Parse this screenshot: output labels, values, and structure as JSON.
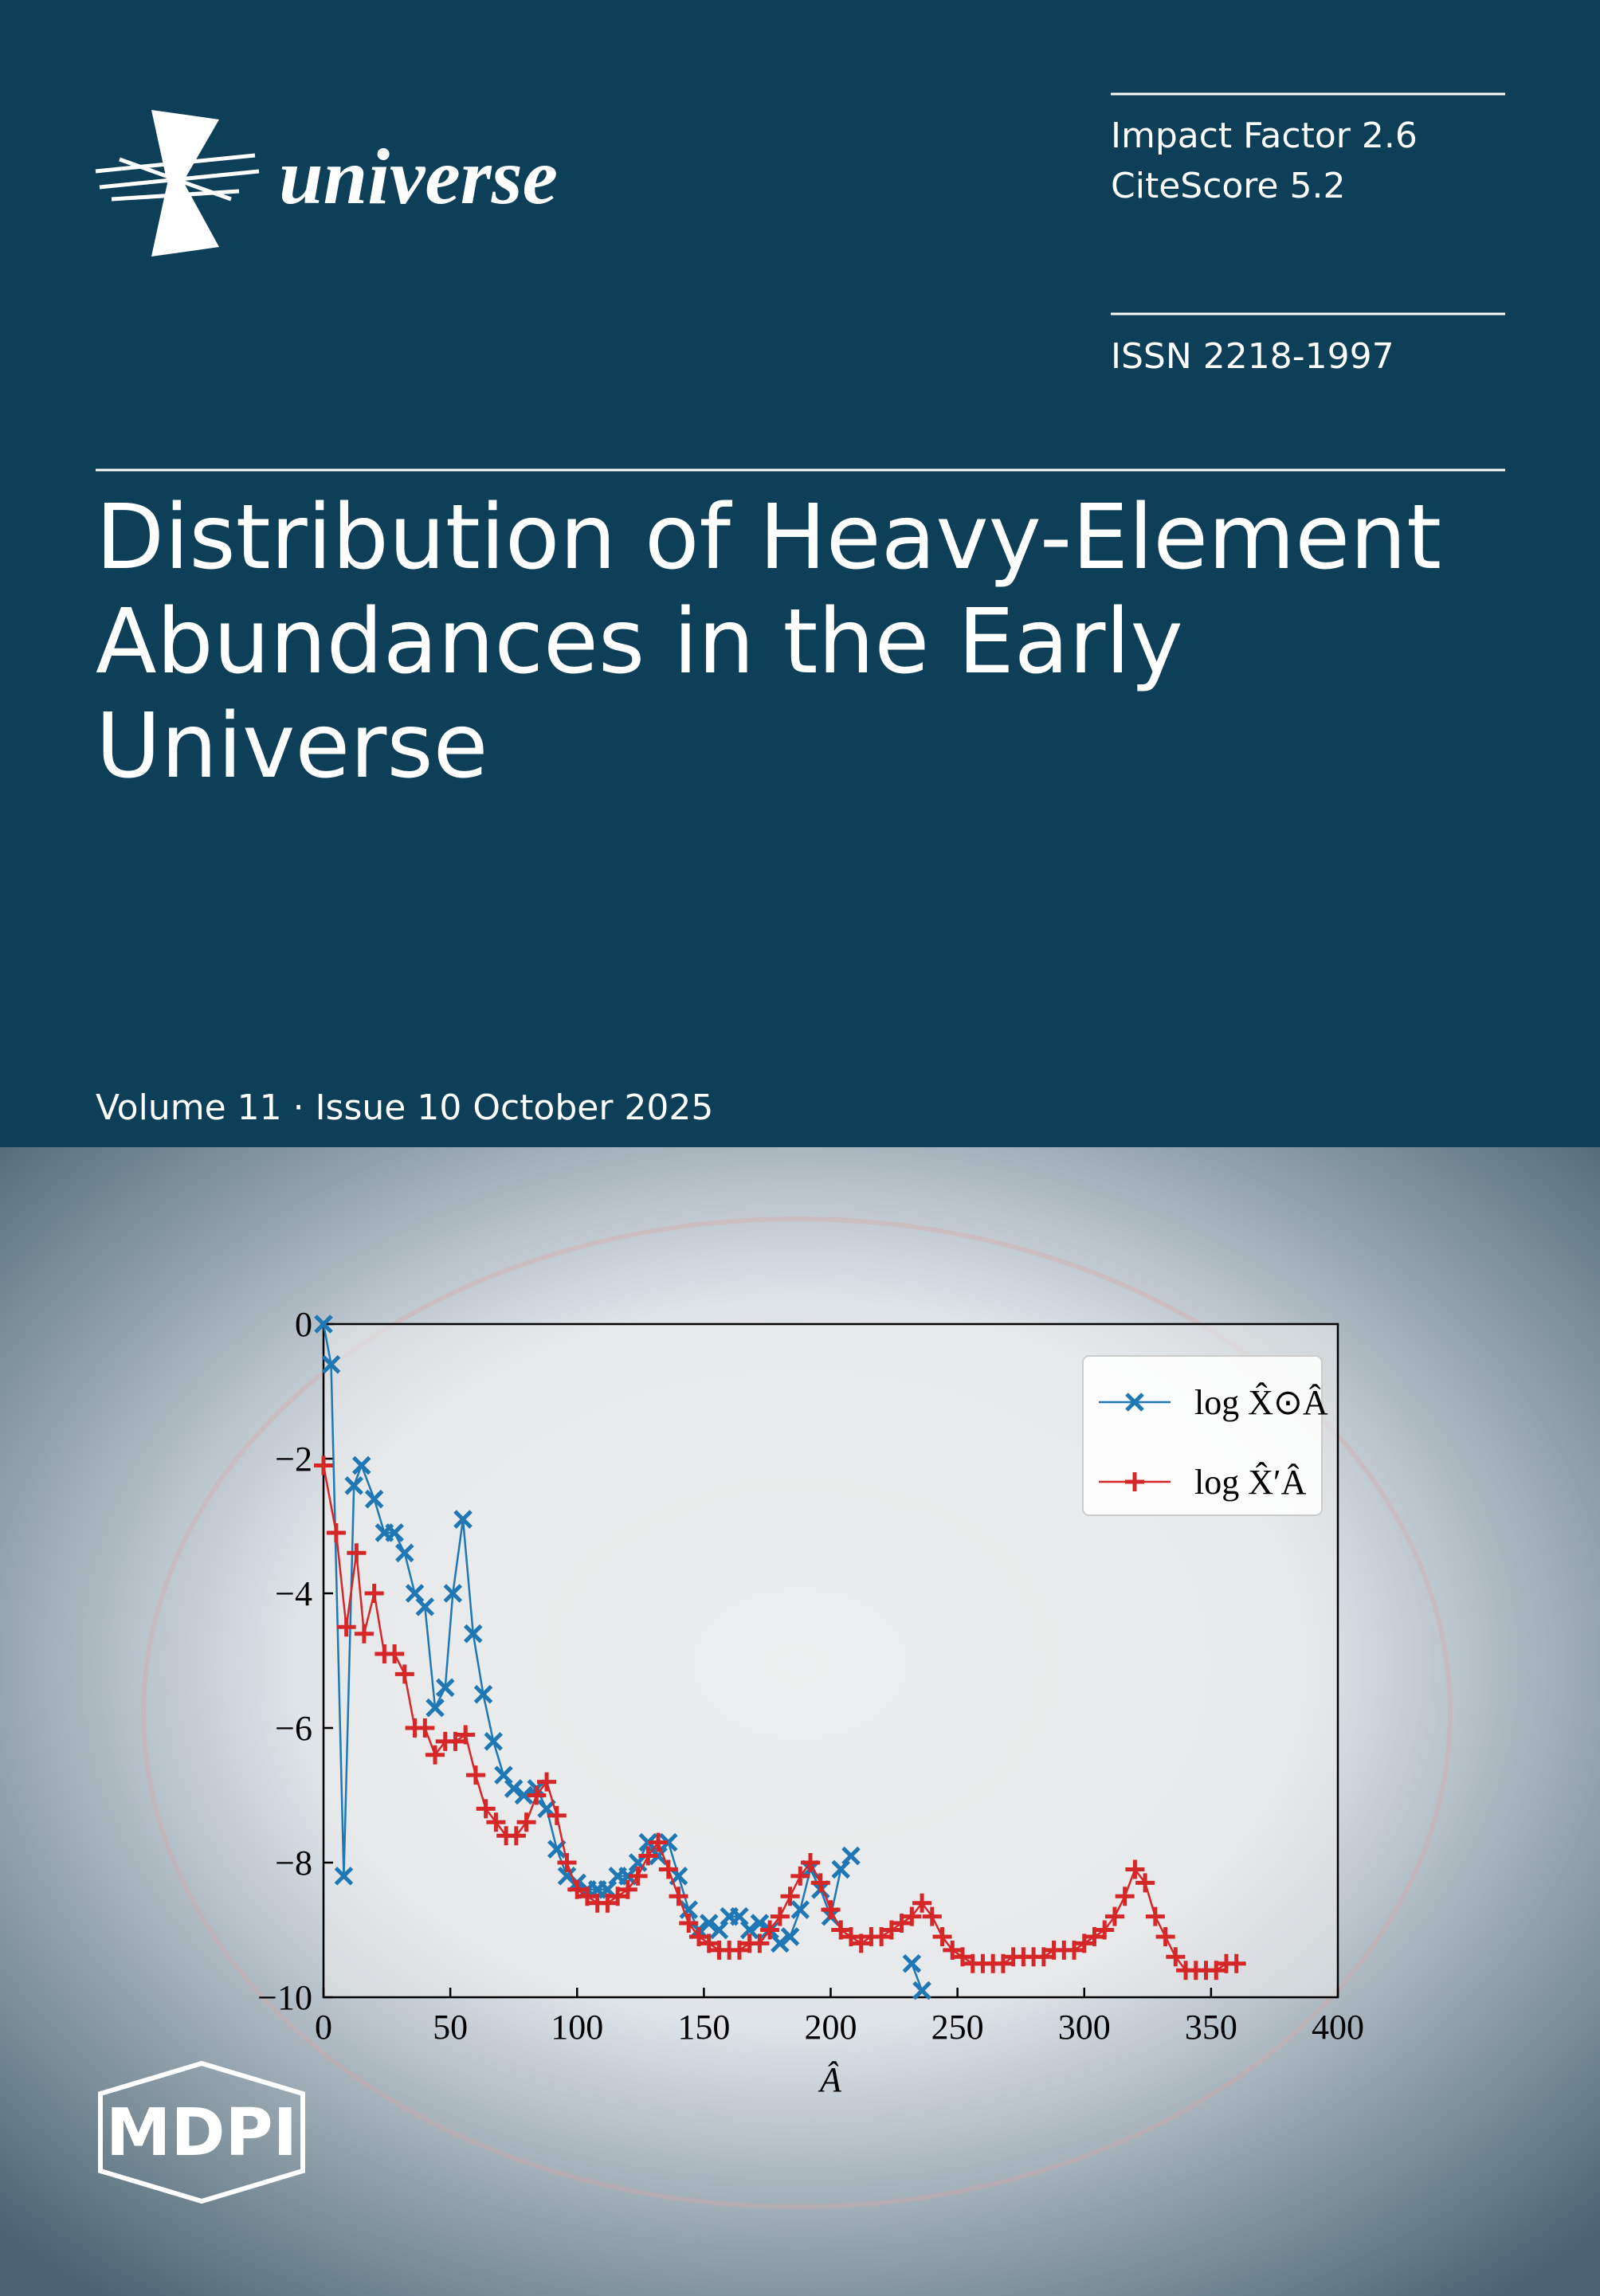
{
  "cover": {
    "journal": "universe",
    "impact_factor": "Impact Factor 2.6",
    "citescore": "CiteScore 5.2",
    "issn": "ISSN 2218-1997",
    "title_lines": [
      "Distribution of Heavy-Element",
      "Abundances in the Early",
      "Universe"
    ],
    "issue": "Volume 11 · Issue 10 October 2025",
    "publisher": "MDPI"
  },
  "chart_data": {
    "type": "line",
    "xlabel": "Â",
    "xlim": [
      0,
      400
    ],
    "ylim": [
      -10,
      0
    ],
    "xticks": [
      0,
      50,
      100,
      150,
      200,
      250,
      300,
      350,
      400
    ],
    "yticks": [
      0,
      {
        "value": -2,
        "label": "−2"
      },
      {
        "value": -4,
        "label": "−4"
      },
      {
        "value": -6,
        "label": "−6"
      },
      {
        "value": -8,
        "label": "−8"
      },
      {
        "value": -10,
        "label": "−10"
      }
    ],
    "legend": "upper right",
    "series": [
      {
        "name": "log X̂⊙Â",
        "color": "#1f77b4",
        "marker": "x",
        "x": [
          0,
          3,
          8,
          12,
          15,
          20,
          24,
          28,
          32,
          36,
          40,
          44,
          48,
          51,
          55,
          59,
          63,
          67,
          71,
          75,
          79,
          84,
          88,
          92,
          96,
          100,
          104,
          108,
          112,
          116,
          120,
          124,
          128,
          132,
          136,
          140,
          144,
          148,
          152,
          156,
          160,
          164,
          168,
          172,
          176,
          180,
          184,
          188,
          192,
          196,
          200,
          204,
          208,
          220,
          232,
          236
        ],
        "values": [
          0,
          -0.6,
          -8.2,
          -2.4,
          -2.1,
          -2.6,
          -3.1,
          -3.1,
          -3.4,
          -4.0,
          -4.2,
          -5.7,
          -5.4,
          -4.0,
          -2.9,
          -4.6,
          -5.5,
          -6.2,
          -6.7,
          -6.9,
          -7.0,
          -6.9,
          -7.2,
          -7.8,
          -8.2,
          -8.3,
          -8.4,
          -8.4,
          -8.4,
          -8.2,
          -8.2,
          -8.0,
          -7.7,
          -7.9,
          -7.7,
          -8.2,
          -8.7,
          -9.0,
          -8.9,
          -9.0,
          -8.8,
          -8.8,
          -9.0,
          -8.9,
          -9.0,
          -9.2,
          -9.1,
          -8.7,
          -8.1,
          -8.4,
          -8.8,
          -8.1,
          -7.9,
          null,
          -9.5,
          -9.9
        ]
      },
      {
        "name": "log X̂′Â",
        "color": "#d62728",
        "marker": "+",
        "x": [
          0,
          5,
          9,
          13,
          16,
          20,
          24,
          28,
          32,
          36,
          40,
          44,
          48,
          52,
          56,
          60,
          64,
          68,
          72,
          76,
          80,
          84,
          88,
          92,
          96,
          100,
          104,
          108,
          112,
          116,
          120,
          124,
          128,
          132,
          136,
          140,
          144,
          148,
          152,
          156,
          160,
          164,
          168,
          172,
          176,
          180,
          184,
          188,
          192,
          196,
          200,
          204,
          208,
          212,
          216,
          220,
          224,
          228,
          232,
          236,
          240,
          244,
          248,
          252,
          256,
          260,
          264,
          268,
          272,
          276,
          280,
          284,
          288,
          292,
          296,
          300,
          304,
          308,
          312,
          316,
          320,
          324,
          328,
          332,
          336,
          340,
          344,
          348,
          352,
          356,
          360
        ],
        "values": [
          -2.1,
          -3.1,
          -4.5,
          -3.4,
          -4.6,
          -4.0,
          -4.9,
          -4.9,
          -5.2,
          -6.0,
          -6.0,
          -6.4,
          -6.2,
          -6.2,
          -6.1,
          -6.7,
          -7.2,
          -7.4,
          -7.6,
          -7.6,
          -7.4,
          -7.0,
          -6.8,
          -7.3,
          -8.0,
          -8.4,
          -8.5,
          -8.6,
          -8.6,
          -8.5,
          -8.4,
          -8.2,
          -7.9,
          -7.7,
          -8.1,
          -8.5,
          -8.9,
          -9.1,
          -9.2,
          -9.3,
          -9.3,
          -9.3,
          -9.2,
          -9.2,
          -9.0,
          -8.8,
          -8.5,
          -8.2,
          -8.0,
          -8.3,
          -8.7,
          -9.0,
          -9.1,
          -9.2,
          -9.1,
          -9.1,
          -9.0,
          -8.9,
          -8.8,
          -8.6,
          -8.8,
          -9.1,
          -9.3,
          -9.4,
          -9.5,
          -9.5,
          -9.5,
          -9.5,
          -9.4,
          -9.4,
          -9.4,
          -9.4,
          -9.3,
          -9.3,
          -9.3,
          -9.2,
          -9.1,
          -9.0,
          -8.8,
          -8.5,
          -8.1,
          -8.3,
          -8.8,
          -9.1,
          -9.4,
          -9.6,
          -9.6,
          -9.6,
          -9.6,
          -9.5,
          -9.5
        ]
      }
    ]
  }
}
